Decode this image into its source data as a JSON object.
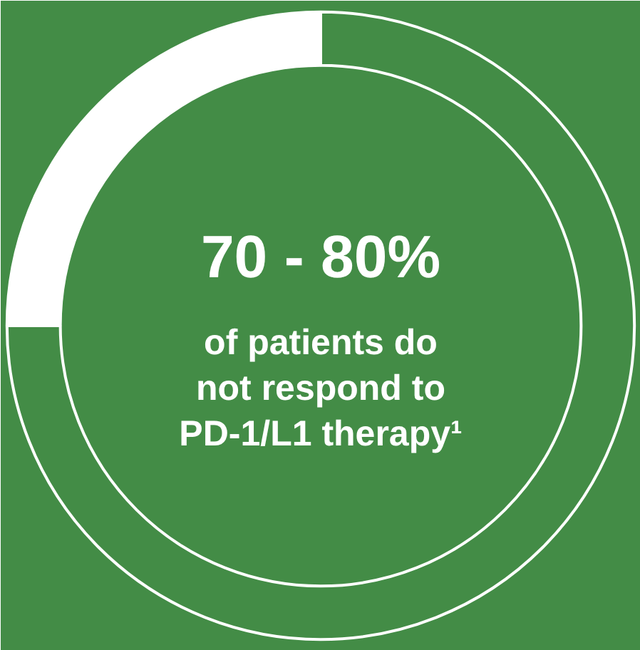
{
  "chart_data": {
    "type": "donut",
    "title": "70 - 80%",
    "annotations": [
      "of patients do\nnot respond to\nPD-1/L1 therapy¹"
    ],
    "categories": [
      null,
      null
    ],
    "values": [
      75,
      25
    ],
    "colors": [
      "#438c46",
      "#ffffff"
    ]
  }
}
